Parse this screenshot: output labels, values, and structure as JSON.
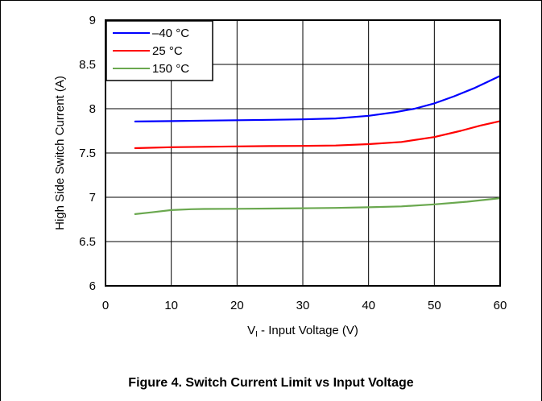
{
  "chart_data": {
    "type": "line",
    "xlabel_main": "V",
    "xlabel_sub": "I",
    "xlabel_rest": " - Input Voltage (V)",
    "ylabel": "High Side Switch Current (A)",
    "xlim": [
      0,
      60
    ],
    "ylim": [
      6,
      9
    ],
    "x_ticks": [
      0,
      10,
      20,
      30,
      40,
      50,
      60
    ],
    "y_ticks": [
      6,
      6.5,
      7,
      7.5,
      8,
      8.5,
      9
    ],
    "x_tick_labels": [
      "0",
      "10",
      "20",
      "30",
      "40",
      "50",
      "60"
    ],
    "y_tick_labels": [
      "6",
      "6.5",
      "7",
      "7.5",
      "8",
      "8.5",
      "9"
    ],
    "grid": true,
    "legend_position": "top-left",
    "series": [
      {
        "name": "–40 °C",
        "color": "#0000ff",
        "x": [
          4.5,
          10,
          15,
          20,
          25,
          30,
          35,
          40,
          44,
          47,
          50,
          53,
          56,
          58,
          60
        ],
        "y": [
          7.855,
          7.86,
          7.865,
          7.87,
          7.875,
          7.88,
          7.89,
          7.92,
          7.96,
          8.0,
          8.06,
          8.14,
          8.23,
          8.3,
          8.37
        ]
      },
      {
        "name": "25 °C",
        "color": "#ff0000",
        "x": [
          4.5,
          10,
          15,
          20,
          25,
          30,
          35,
          40,
          45,
          50,
          54,
          57,
          60
        ],
        "y": [
          7.555,
          7.565,
          7.57,
          7.575,
          7.578,
          7.58,
          7.585,
          7.6,
          7.625,
          7.68,
          7.75,
          7.81,
          7.86
        ]
      },
      {
        "name": "150 °C",
        "color": "#6aa84f",
        "x": [
          4.5,
          7,
          10,
          13,
          15,
          20,
          25,
          30,
          35,
          40,
          45,
          50,
          55,
          60
        ],
        "y": [
          6.81,
          6.83,
          6.855,
          6.865,
          6.868,
          6.87,
          6.873,
          6.876,
          6.88,
          6.887,
          6.897,
          6.92,
          6.95,
          6.99
        ]
      }
    ]
  },
  "caption": "Figure 4. Switch Current Limit vs Input Voltage"
}
